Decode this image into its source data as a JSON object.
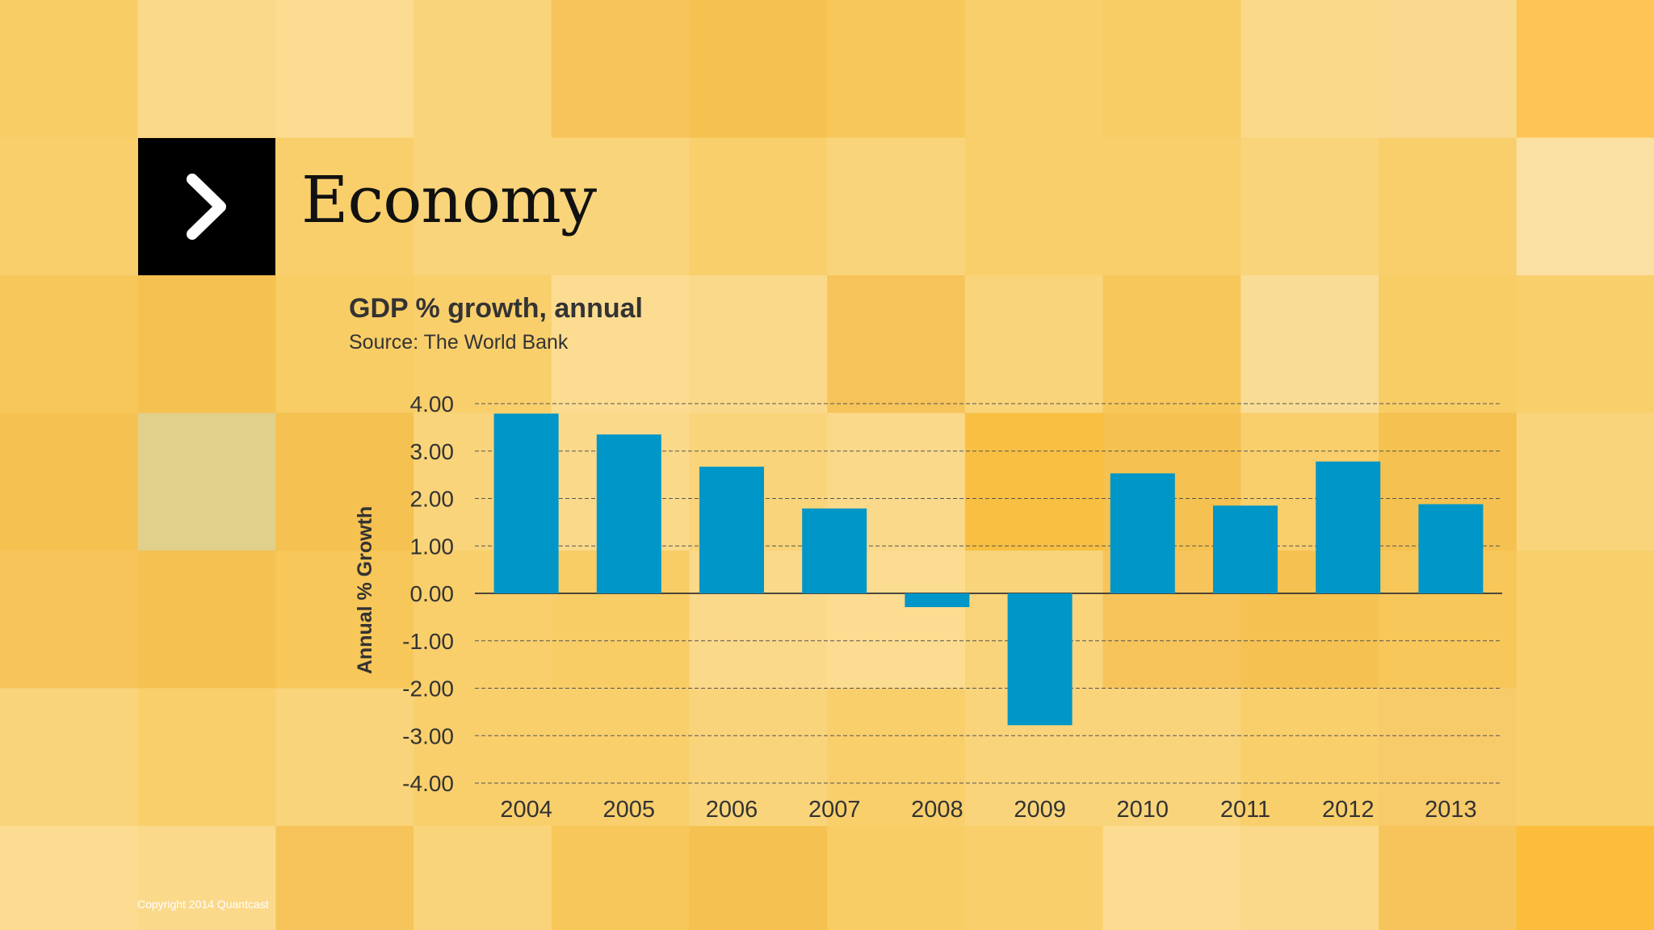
{
  "slide": {
    "section_title": "Economy",
    "copyright": "Copyright 2014 Quantcast"
  },
  "icons": {
    "section_marker": "chevron-right-icon"
  },
  "colors": {
    "background": "#f7c95c",
    "bar": "#0096c8",
    "marker_box": "#000000",
    "text": "#333333"
  },
  "chart_data": {
    "type": "bar",
    "title": "GDP % growth, annual",
    "subtitle": "Source: The World Bank",
    "xlabel": "",
    "ylabel": "Annual % Growth",
    "categories": [
      "2004",
      "2005",
      "2006",
      "2007",
      "2008",
      "2009",
      "2010",
      "2011",
      "2012",
      "2013"
    ],
    "values": [
      3.79,
      3.35,
      2.67,
      1.79,
      -0.29,
      -2.78,
      2.53,
      1.85,
      2.78,
      1.88
    ],
    "ylim": [
      -4,
      4
    ],
    "yticks": [
      "4.00",
      "3.00",
      "2.00",
      "1.00",
      "0.00",
      "-1.00",
      "-2.00",
      "-3.00",
      "-4.00"
    ],
    "grid": true,
    "legend": "none"
  }
}
